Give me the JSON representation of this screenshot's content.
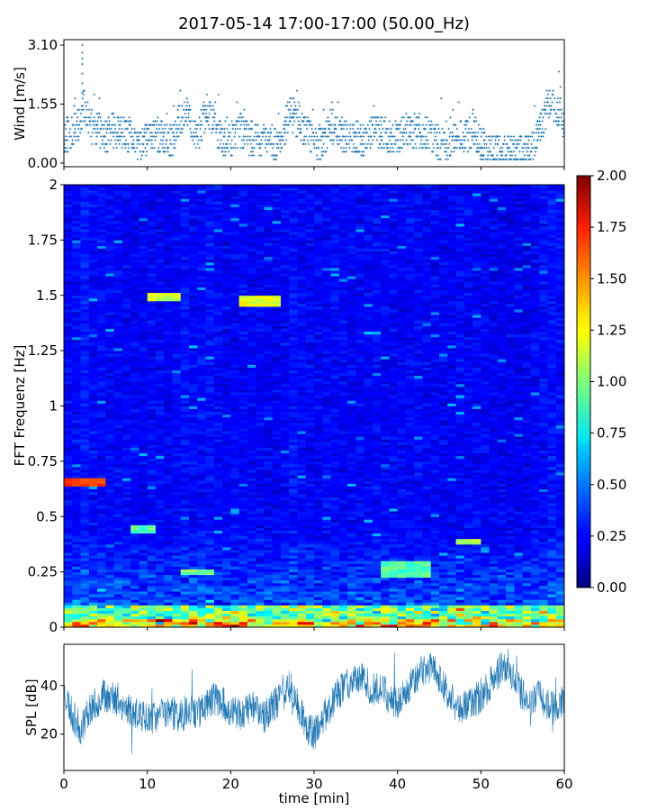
{
  "title": "2017-05-14 17:00-17:00 (50.00_Hz)",
  "chart_data": [
    {
      "type": "scatter",
      "panel": "wind",
      "ylabel": "Wind [m/s]",
      "ylim": [
        0,
        3.1
      ],
      "xlim": [
        0,
        60
      ],
      "y_ticks": [
        "0.00",
        "1.55",
        "3.10"
      ],
      "y_tick_values": [
        0,
        1.55,
        3.1
      ],
      "marker": "+",
      "color": "#1f77b4",
      "profile_x": [
        0,
        1,
        2,
        2.5,
        3,
        4,
        5,
        6,
        7,
        8,
        9,
        10,
        11,
        12,
        13,
        14,
        15,
        16,
        17,
        18,
        19,
        20,
        21,
        22,
        23,
        24,
        25,
        26,
        27,
        28,
        29,
        30,
        31,
        32,
        33,
        34,
        35,
        36,
        37,
        38,
        39,
        40,
        41,
        42,
        43,
        44,
        45,
        46,
        47,
        48,
        49,
        50,
        51,
        52,
        53,
        54,
        55,
        56,
        57,
        58,
        59,
        60
      ],
      "profile_y": [
        0.7,
        0.8,
        1.1,
        1.6,
        1.0,
        0.9,
        0.7,
        0.9,
        0.8,
        0.7,
        0.5,
        0.6,
        0.8,
        0.7,
        0.5,
        1.2,
        1.3,
        0.6,
        1.4,
        1.2,
        0.5,
        0.6,
        0.9,
        0.7,
        0.6,
        0.6,
        0.5,
        0.4,
        1.4,
        1.1,
        0.8,
        0.6,
        0.5,
        1.0,
        0.8,
        0.6,
        0.7,
        0.6,
        0.9,
        0.8,
        0.7,
        0.6,
        0.9,
        0.8,
        0.8,
        0.7,
        0.5,
        0.5,
        0.8,
        0.6,
        0.9,
        0.5,
        0.3,
        0.3,
        0.3,
        0.3,
        0.3,
        0.3,
        0.8,
        1.5,
        1.5,
        0.9
      ]
    },
    {
      "type": "heatmap",
      "panel": "spectrogram",
      "ylabel": "FFT Frequenz [Hz]",
      "xlim": [
        0,
        60
      ],
      "ylim": [
        0,
        2
      ],
      "y_ticks": [
        "0",
        "0.25",
        "0.5",
        "0.75",
        "1",
        "1.25",
        "1.5",
        "1.75",
        "2"
      ],
      "y_tick_values": [
        0,
        0.25,
        0.5,
        0.75,
        1,
        1.25,
        1.5,
        1.75,
        2
      ],
      "colormap": "jet",
      "clim": [
        0,
        2
      ],
      "colorbar_ticks": [
        "0.00",
        "0.25",
        "0.50",
        "0.75",
        "1.00",
        "1.25",
        "1.50",
        "1.75",
        "2.00"
      ],
      "colorbar_tick_values": [
        0,
        0.25,
        0.5,
        0.75,
        1,
        1.25,
        1.5,
        1.75,
        2
      ],
      "hotspots": [
        {
          "t": [
            10,
            13.5
          ],
          "f": [
            1.47,
            1.51
          ],
          "v": 1.15
        },
        {
          "t": [
            21.5,
            25.5
          ],
          "f": [
            1.45,
            1.5
          ],
          "v": 1.2
        },
        {
          "t": [
            0,
            5
          ],
          "f": [
            0.64,
            0.67
          ],
          "v": 1.6
        },
        {
          "t": [
            8,
            11
          ],
          "f": [
            0.42,
            0.46
          ],
          "v": 0.9
        },
        {
          "t": [
            47,
            50
          ],
          "f": [
            0.37,
            0.4
          ],
          "v": 1.1
        },
        {
          "t": [
            38,
            44
          ],
          "f": [
            0.22,
            0.3
          ],
          "v": 0.9
        },
        {
          "t": [
            14,
            18
          ],
          "f": [
            0.24,
            0.26
          ],
          "v": 1.0
        }
      ]
    },
    {
      "type": "area",
      "panel": "spl",
      "ylabel": "SPL [dB]",
      "xlabel": "time [min]",
      "xlim": [
        0,
        60
      ],
      "ylim": [
        5,
        57
      ],
      "x_ticks": [
        "0",
        "10",
        "20",
        "30",
        "40",
        "50",
        "60"
      ],
      "x_tick_values": [
        0,
        10,
        20,
        30,
        40,
        50,
        60
      ],
      "y_ticks": [
        "20",
        "40"
      ],
      "y_tick_values": [
        20,
        40
      ],
      "color": "#1f77b4",
      "profile_x": [
        0,
        1,
        2,
        3,
        4,
        5,
        6,
        7,
        8,
        9,
        10,
        11,
        12,
        13,
        14,
        15,
        16,
        17,
        18,
        19,
        20,
        21,
        22,
        23,
        24,
        25,
        26,
        27,
        28,
        29,
        30,
        31,
        32,
        33,
        34,
        35,
        36,
        37,
        38,
        39,
        40,
        41,
        42,
        43,
        44,
        45,
        46,
        47,
        48,
        49,
        50,
        51,
        52,
        53,
        54,
        55,
        56,
        57,
        58,
        59,
        60
      ],
      "profile_y": [
        38,
        28,
        22,
        30,
        33,
        36,
        34,
        32,
        30,
        27,
        28,
        26,
        30,
        29,
        27,
        31,
        29,
        32,
        35,
        33,
        29,
        28,
        30,
        32,
        27,
        31,
        35,
        40,
        32,
        23,
        20,
        26,
        32,
        37,
        41,
        44,
        42,
        38,
        40,
        35,
        33,
        38,
        43,
        46,
        48,
        44,
        36,
        32,
        31,
        33,
        36,
        40,
        45,
        49,
        43,
        36,
        34,
        36,
        33,
        30,
        34
      ]
    }
  ]
}
